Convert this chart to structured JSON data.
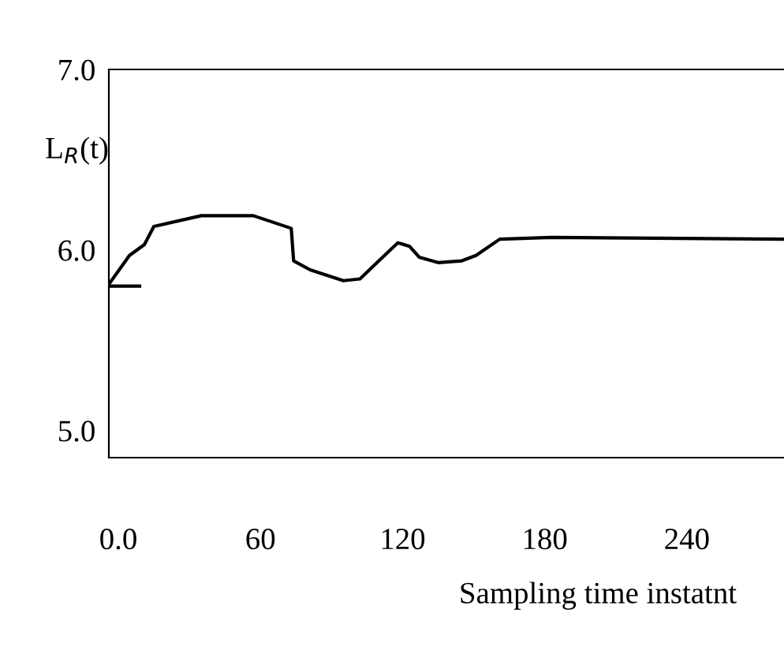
{
  "chart_data": {
    "type": "line",
    "xlabel": "Sampling time instatnt",
    "ylabel": "L$_{R}$(t)",
    "xlim": [
      -4,
      281
    ],
    "ylim": [
      4.85,
      7.0
    ],
    "xticks": [
      {
        "value": 0,
        "label": "0.0"
      },
      60,
      120,
      180,
      240
    ],
    "yticks": [
      {
        "value": 5.0,
        "label": "5.0"
      },
      {
        "value": 6.0,
        "label": "6.0"
      },
      {
        "value": 7.0,
        "label": "7.0"
      }
    ],
    "grid": false,
    "legend": false,
    "series": [
      {
        "color": "#000000",
        "x": [
          -4,
          4.7,
          11,
          15,
          35,
          57,
          73,
          74,
          81,
          95,
          102,
          110,
          118,
          123,
          127,
          135,
          145,
          151,
          161,
          183,
          281
        ],
        "values": [
          5.81,
          5.97,
          6.03,
          6.13,
          6.19,
          6.19,
          6.12,
          5.94,
          5.89,
          5.83,
          5.84,
          5.94,
          6.04,
          6.02,
          5.96,
          5.93,
          5.94,
          5.97,
          6.06,
          6.07,
          6.06
        ]
      },
      {
        "color": "#000000",
        "x": [
          -4,
          9
        ],
        "values": [
          5.8,
          5.8
        ]
      }
    ]
  }
}
